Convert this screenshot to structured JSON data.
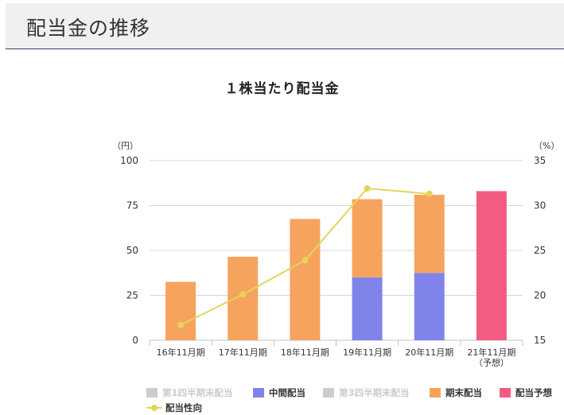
{
  "header": {
    "title": "配当金の推移"
  },
  "chart_data": {
    "type": "bar",
    "title": "１株当たり配当金",
    "categories": [
      "16年11月期",
      "17年11月期",
      "18年11月期",
      "19年11月期",
      "20年11月期",
      "21年11月期\n（予想）"
    ],
    "y_unit_left": "（円）",
    "y_unit_right": "（%）",
    "ylim": [
      0,
      100
    ],
    "y2lim": [
      15,
      35
    ],
    "yticks": [
      "100",
      "75",
      "50",
      "25",
      "0"
    ],
    "y2ticks": [
      "35",
      "30",
      "25",
      "20",
      "15"
    ],
    "series": [
      {
        "name": "第1四半期末配当",
        "color": "#cccccc",
        "values": [
          0,
          0,
          0,
          0,
          0,
          0
        ]
      },
      {
        "name": "中間配当",
        "color": "#8084ea",
        "values": [
          0,
          0,
          0,
          35,
          37.5,
          0
        ]
      },
      {
        "name": "第3四半期末配当",
        "color": "#cccccc",
        "values": [
          0,
          0,
          0,
          0,
          0,
          0
        ]
      },
      {
        "name": "期末配当",
        "color": "#f6a35e",
        "values": [
          32.5,
          46.5,
          67.5,
          43.5,
          43.5,
          0
        ]
      },
      {
        "name": "配当予想",
        "color": "#f35b80",
        "values": [
          0,
          0,
          0,
          0,
          0,
          83
        ]
      }
    ],
    "line_series": {
      "name": "配当性向",
      "color": "#e3d45a",
      "axis": "right",
      "values": [
        16.7,
        20.1,
        23.9,
        31.9,
        31.3,
        null
      ]
    },
    "legend": {
      "position": "bottom",
      "items": [
        {
          "label": "第1四半期末配当",
          "color": "#cccccc",
          "muted": true
        },
        {
          "label": "中間配当",
          "color": "#8084ea"
        },
        {
          "label": "第3四半期末配当",
          "color": "#cccccc",
          "muted": true
        },
        {
          "label": "期末配当",
          "color": "#f6a35e"
        },
        {
          "label": "配当予想",
          "color": "#f35b80"
        },
        {
          "label": "配当性向",
          "color": "#e3d45a",
          "line": true
        }
      ]
    }
  }
}
